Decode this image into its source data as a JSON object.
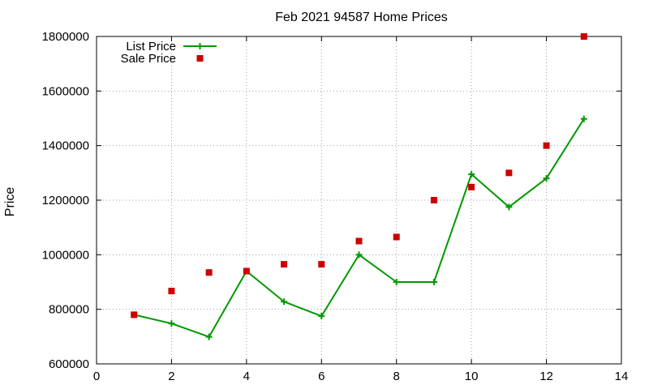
{
  "chart_data": {
    "type": "line",
    "title": "Feb 2021 94587 Home Prices",
    "xlabel": "",
    "ylabel": "Price",
    "xlim": [
      0,
      14
    ],
    "ylim": [
      600000,
      1800000
    ],
    "x_ticks": [
      "0",
      "2",
      "4",
      "6",
      "8",
      "10",
      "12",
      "14"
    ],
    "y_ticks": [
      "600000",
      "800000",
      "1000000",
      "1200000",
      "1400000",
      "1600000",
      "1800000"
    ],
    "grid": true,
    "legend_position": "top-left",
    "series": [
      {
        "name": "List Price",
        "style": "line-with-plus-markers",
        "color": "#009900",
        "x": [
          1,
          2,
          3,
          4,
          5,
          6,
          7,
          8,
          9,
          10,
          11,
          12,
          13
        ],
        "values": [
          780000,
          748000,
          699000,
          940000,
          828000,
          775000,
          1000000,
          900000,
          900000,
          1295000,
          1175000,
          1280000,
          1498000
        ]
      },
      {
        "name": "Sale Price",
        "style": "square-markers",
        "color": "#cc0000",
        "x": [
          1,
          2,
          3,
          4,
          5,
          6,
          7,
          8,
          9,
          10,
          11,
          12,
          13
        ],
        "values": [
          780000,
          867000,
          935000,
          940000,
          965000,
          965000,
          1050000,
          1065000,
          1200000,
          1248000,
          1300000,
          1400000,
          1800000
        ]
      }
    ]
  }
}
